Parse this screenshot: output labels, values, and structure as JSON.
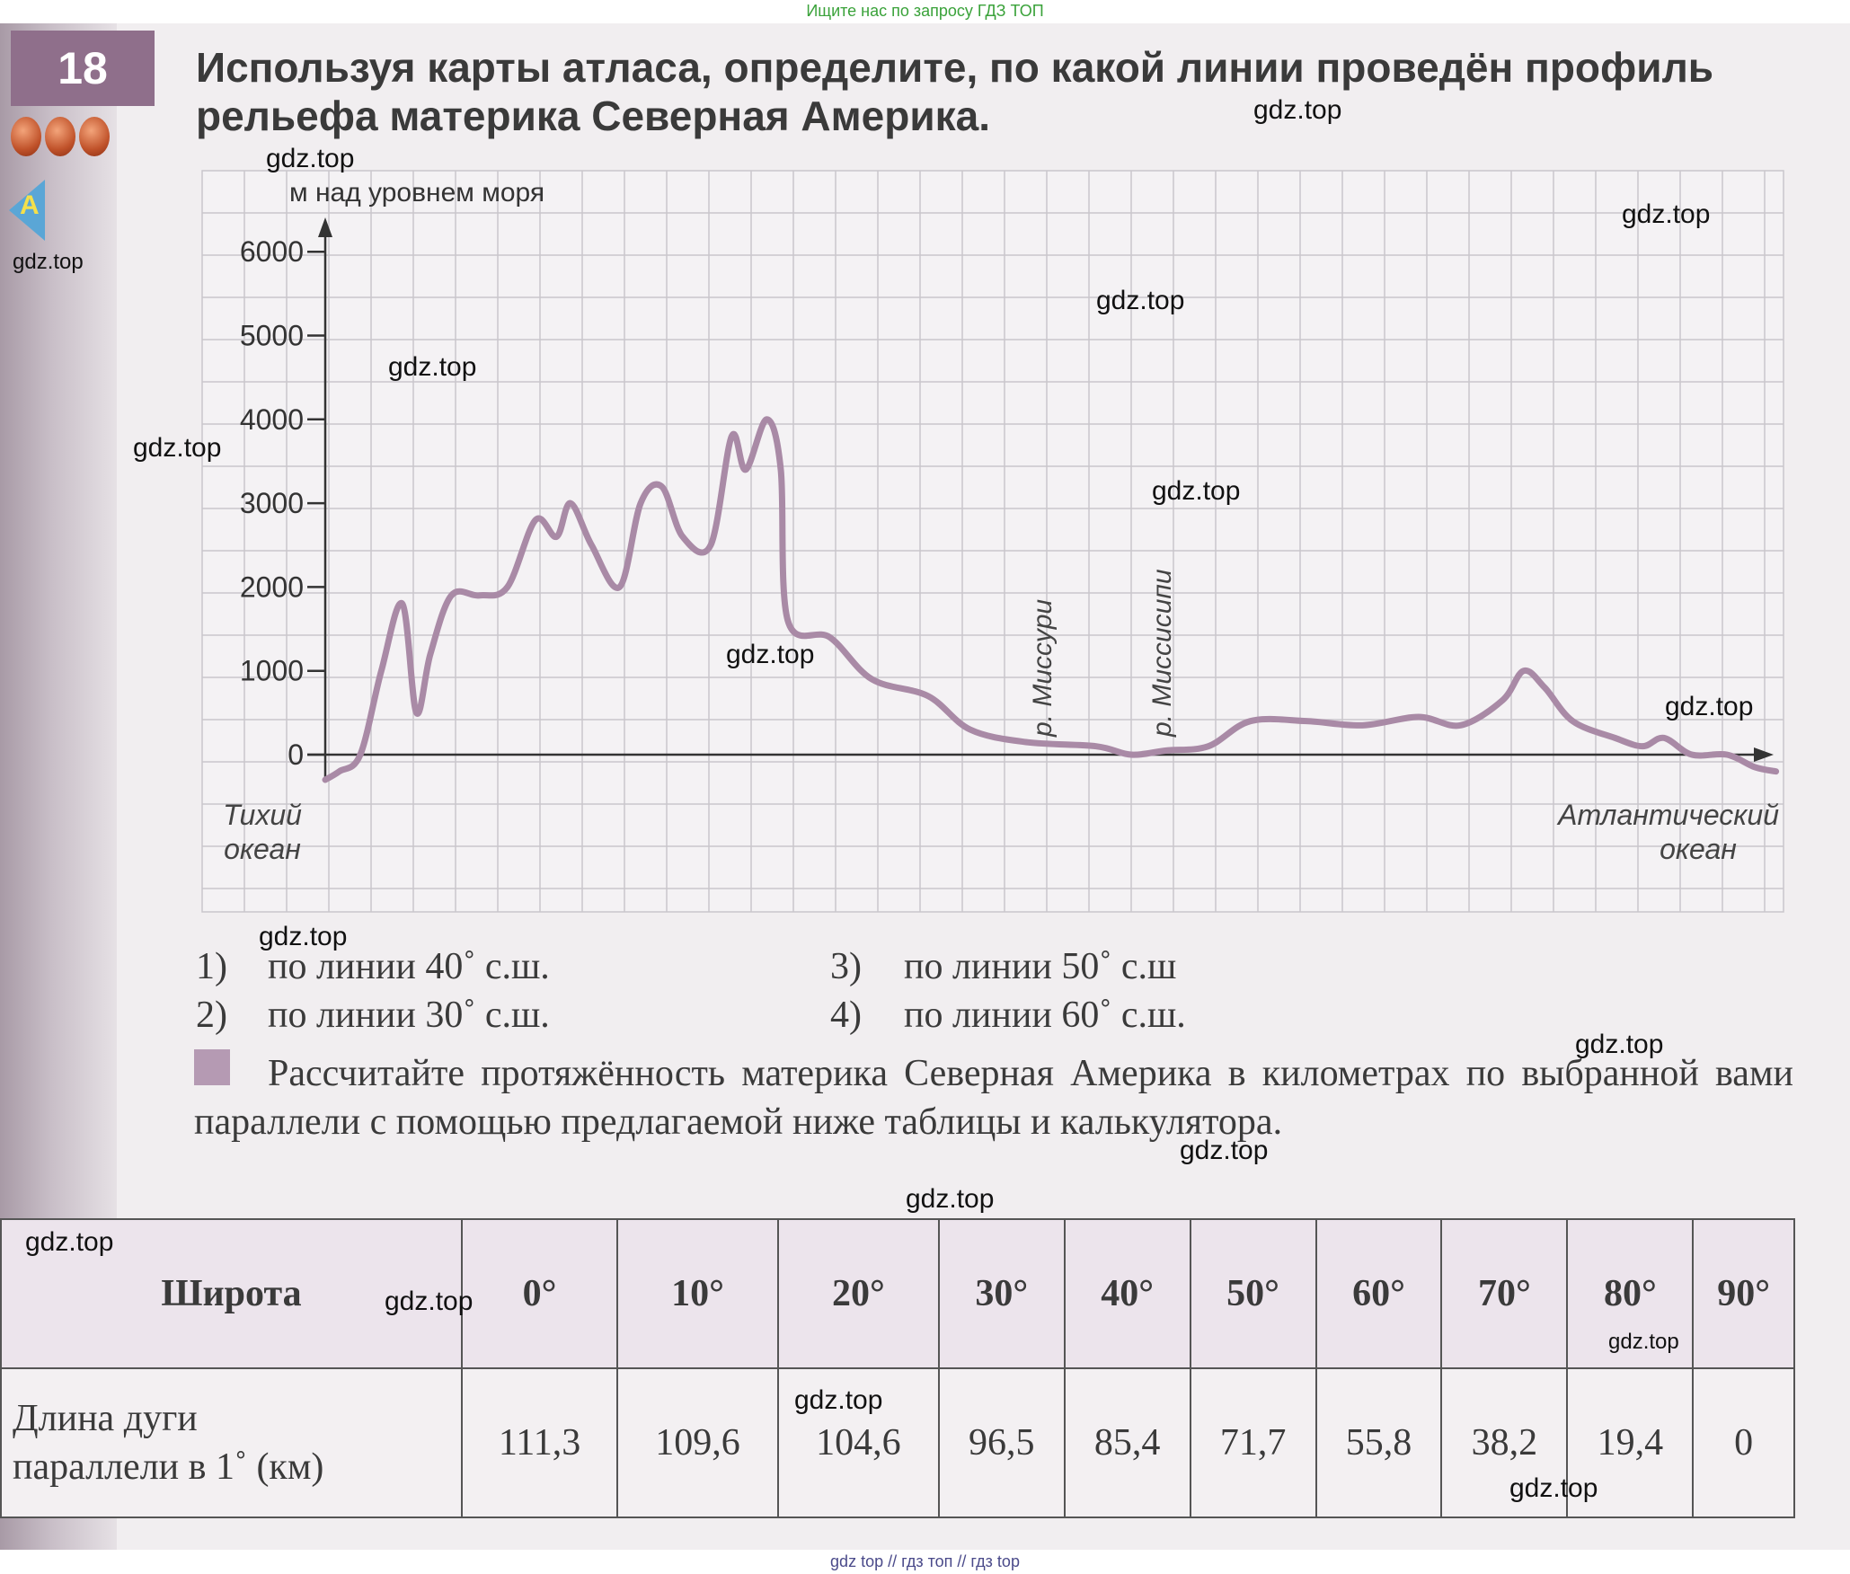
{
  "banner": {
    "top": "Ищите нас по запросу ГДЗ ТОП",
    "bottom": "gdz top  //  гдз топ  //  гдз top"
  },
  "task": {
    "number": "18",
    "question": "Используя карты атласа, определите, по какой линии проведён профиль рельефа материка Северная Америка.",
    "side_icon": "A"
  },
  "chart_data": {
    "type": "line",
    "ylabel": "м   над уровнем моря",
    "ylim": [
      -500,
      6500
    ],
    "yticks": [
      0,
      1000,
      2000,
      3000,
      4000,
      5000,
      6000
    ],
    "ytick_labels": [
      "0",
      "1000",
      "2000",
      "3000",
      "4000",
      "5000",
      "6000"
    ],
    "series": [
      {
        "values": [
          [
            0,
            -300
          ],
          [
            0.2,
            -200
          ],
          [
            0.5,
            0
          ],
          [
            0.8,
            1000
          ],
          [
            1.1,
            1800
          ],
          [
            1.3,
            500
          ],
          [
            1.5,
            1200
          ],
          [
            1.8,
            1900
          ],
          [
            2.2,
            1900
          ],
          [
            2.6,
            2000
          ],
          [
            3.0,
            2800
          ],
          [
            3.3,
            2600
          ],
          [
            3.5,
            3000
          ],
          [
            3.8,
            2500
          ],
          [
            4.2,
            2000
          ],
          [
            4.5,
            3000
          ],
          [
            4.8,
            3200
          ],
          [
            5.1,
            2600
          ],
          [
            5.5,
            2500
          ],
          [
            5.8,
            3800
          ],
          [
            6.0,
            3400
          ],
          [
            6.3,
            4000
          ],
          [
            6.5,
            3400
          ],
          [
            6.6,
            1600
          ],
          [
            7.2,
            1400
          ],
          [
            7.8,
            900
          ],
          [
            8.6,
            700
          ],
          [
            9.2,
            300
          ],
          [
            10,
            150
          ],
          [
            11,
            100
          ],
          [
            11.5,
            0
          ],
          [
            12,
            50
          ],
          [
            12.6,
            100
          ],
          [
            13.2,
            400
          ],
          [
            14.0,
            400
          ],
          [
            14.8,
            350
          ],
          [
            15.6,
            450
          ],
          [
            16.2,
            350
          ],
          [
            16.8,
            650
          ],
          [
            17.1,
            1000
          ],
          [
            17.4,
            800
          ],
          [
            17.8,
            400
          ],
          [
            18.4,
            200
          ],
          [
            18.8,
            100
          ],
          [
            19.1,
            200
          ],
          [
            19.5,
            0
          ],
          [
            20,
            0
          ],
          [
            20.4,
            -150
          ],
          [
            20.7,
            -200
          ]
        ]
      }
    ],
    "annotations": [
      "р. Миссури",
      "р. Миссисипи"
    ],
    "left_label": [
      "Тихий",
      "океан"
    ],
    "right_label": [
      "Атлантический",
      "океан"
    ],
    "grid": true
  },
  "options": [
    {
      "num": "1)",
      "text": "по линии 40˚ с.ш."
    },
    {
      "num": "2)",
      "text": "по линии 30˚ с.ш."
    },
    {
      "num": "3)",
      "text": "по линии 50˚ с.ш"
    },
    {
      "num": "4)",
      "text": "по линии 60˚ с.ш."
    }
  ],
  "task2": "Рассчитайте протяжённость материка Северная Америка в километрах по выбранной вами параллели с помощью предлагаемой ниже таблицы и калькулятора.",
  "table": {
    "head_label": "Широта",
    "row_label_1": "Длина дуги",
    "row_label_2": "параллели в 1˚ (км)",
    "latitudes": [
      "0°",
      "10°",
      "20°",
      "30°",
      "40°",
      "50°",
      "60°",
      "70°",
      "80°",
      "90°"
    ],
    "lengths": [
      "111,3",
      "109,6",
      "104,6",
      "96,5",
      "85,4",
      "71,7",
      "55,8",
      "38,2",
      "19,4",
      "0"
    ]
  },
  "watermark": "gdz.top",
  "colors": {
    "badge": "#8f6f8b",
    "profile": "#a98aa6",
    "grid": "#c9c6cc",
    "banner_green": "#3aa23a"
  }
}
